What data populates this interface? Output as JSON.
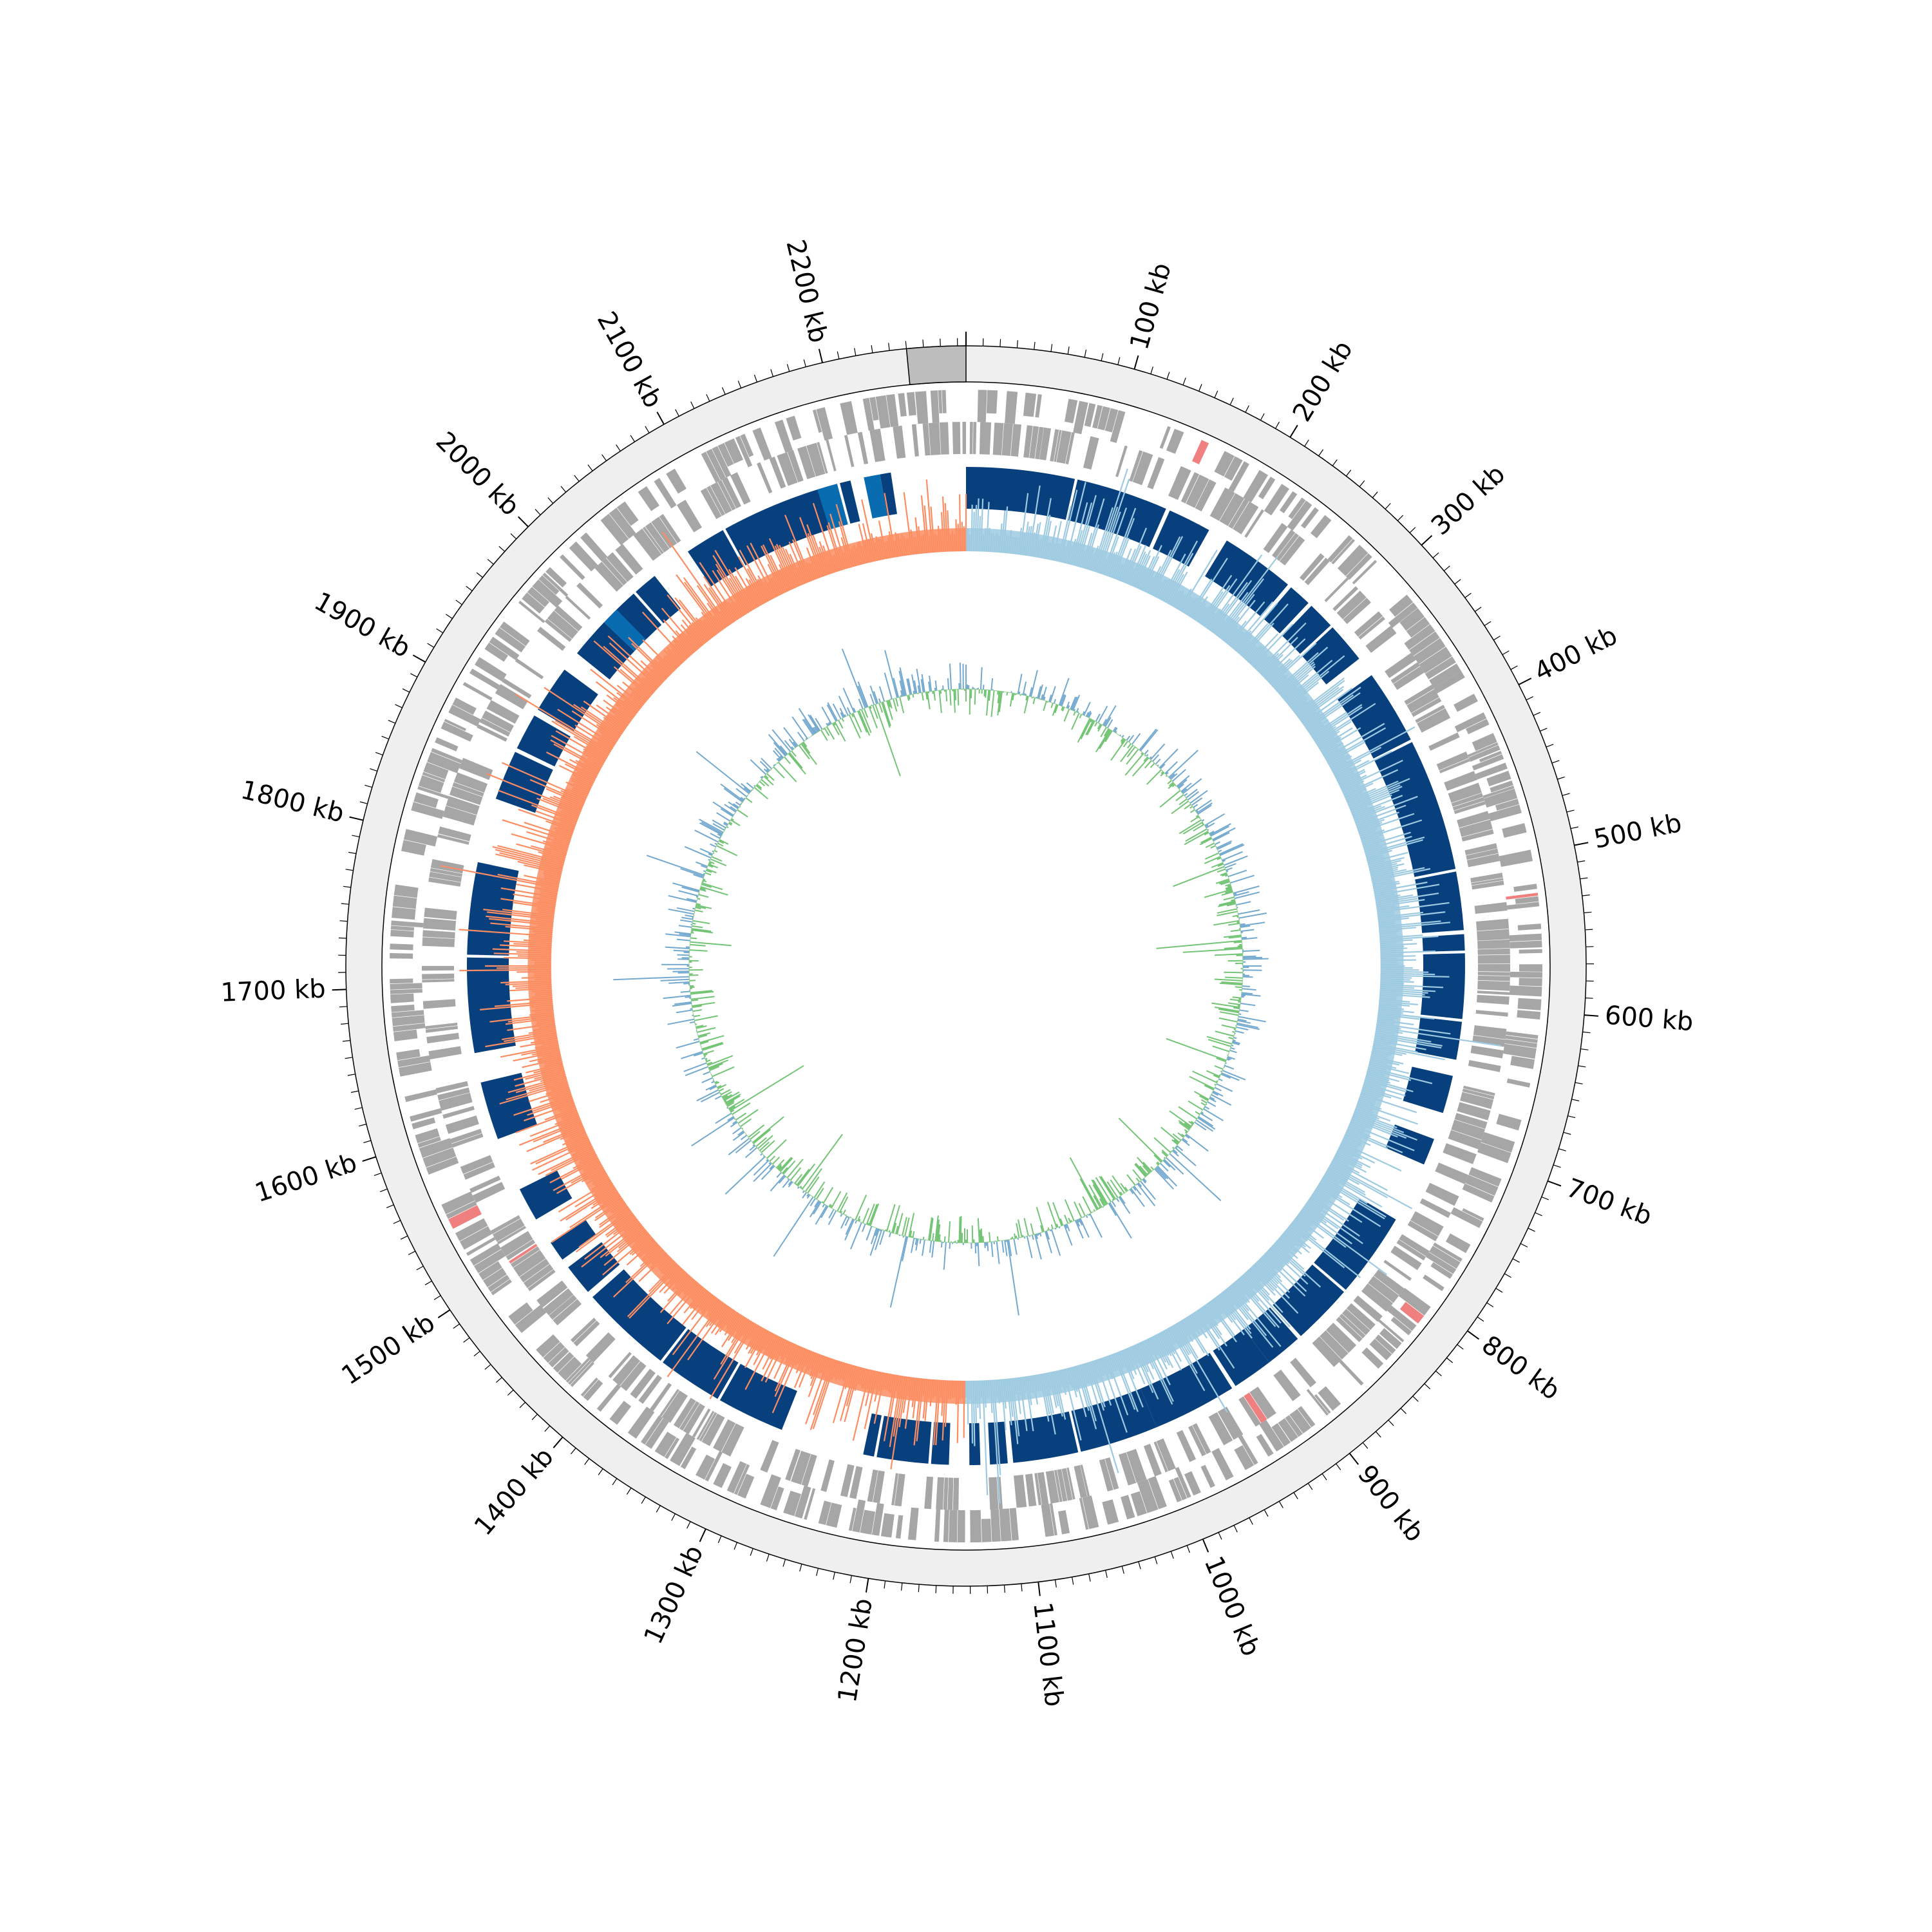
{
  "chart_data": {
    "type": "circular-genome",
    "genome_length_kb": 2285,
    "axis": {
      "tick_labels": [
        "100 kb",
        "200 kb",
        "300 kb",
        "400 kb",
        "500 kb",
        "600 kb",
        "700 kb",
        "800 kb",
        "900 kb",
        "1000 kb",
        "1100 kb",
        "1200 kb",
        "1300 kb",
        "1400 kb",
        "1500 kb",
        "1600 kb",
        "1700 kb",
        "1800 kb",
        "1900 kb",
        "2000 kb",
        "2100 kb",
        "2200 kb"
      ],
      "tick_positions_kb": [
        100,
        200,
        300,
        400,
        500,
        600,
        700,
        800,
        900,
        1000,
        1100,
        1200,
        1300,
        1400,
        1500,
        1600,
        1700,
        1800,
        1900,
        2000,
        2100,
        2200
      ],
      "minor_tick_step_kb": 10
    },
    "highlight_region_kb": [
      2250,
      2285
    ],
    "homology_blocks_kb": [
      [
        0,
        80
      ],
      [
        82,
        150
      ],
      [
        153,
        185
      ],
      [
        200,
        255
      ],
      [
        258,
        275
      ],
      [
        278,
        298
      ],
      [
        300,
        330
      ],
      [
        345,
        400
      ],
      [
        402,
        500
      ],
      [
        502,
        545
      ],
      [
        548,
        560
      ],
      [
        562,
        610
      ],
      [
        612,
        640
      ],
      [
        652,
        680
      ],
      [
        700,
        720
      ],
      [
        765,
        828
      ],
      [
        830,
        875
      ],
      [
        878,
        905
      ],
      [
        905,
        935
      ],
      [
        938,
        1000
      ],
      [
        1000,
        1058
      ],
      [
        1060,
        1108
      ],
      [
        1112,
        1125
      ],
      [
        1132,
        1140
      ],
      [
        1155,
        1168
      ],
      [
        1170,
        1208
      ],
      [
        1210,
        1218
      ],
      [
        1280,
        1330
      ],
      [
        1332,
        1380
      ],
      [
        1382,
        1450
      ],
      [
        1455,
        1478
      ],
      [
        1485,
        1500
      ],
      [
        1520,
        1545
      ],
      [
        1585,
        1628
      ],
      [
        1650,
        1720
      ],
      [
        1722,
        1790
      ],
      [
        1838,
        1875
      ],
      [
        1878,
        1905
      ],
      [
        1910,
        1945
      ],
      [
        1960,
        1990
      ],
      [
        1992,
        2020
      ],
      [
        2022,
        2040
      ],
      [
        2070,
        2100
      ],
      [
        2102,
        2190
      ],
      [
        2192,
        2200
      ],
      [
        2222,
        2230
      ]
    ],
    "gc_skew_sign_change_kb": [
      0,
      1143
    ],
    "series": [
      {
        "name": "",
        "color": "#9ecae1"
      },
      {
        "name": "",
        "color": "#fc8d62"
      },
      {
        "name": "",
        "color": "#74a9cf"
      },
      {
        "name": "",
        "color": "#74c476"
      }
    ],
    "colors": {
      "outer_band": "#efefef",
      "highlight": "#bdbdbd",
      "genes": "#a6a6a6",
      "rna": "#f08080",
      "homology": "#08407e",
      "homology_light": "#0a6cb0"
    }
  }
}
